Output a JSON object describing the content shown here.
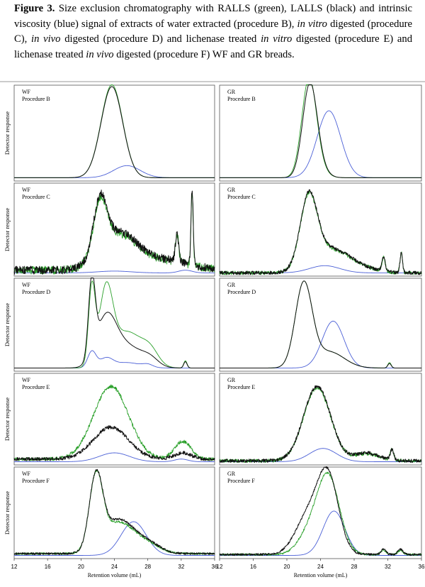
{
  "caption": {
    "label": "Figure 3.",
    "parts": [
      {
        "t": " Size exclusion chromatography with RALLS (green), LALLS (black) and intrinsic viscosity (blue) signal of extracts of water extracted (procedure B), ",
        "i": false
      },
      {
        "t": "in vitro",
        "i": true
      },
      {
        "t": " digested (procedure C), ",
        "i": false
      },
      {
        "t": "in vivo",
        "i": true
      },
      {
        "t": " digested (procedure D) and lichenase treated ",
        "i": false
      },
      {
        "t": "in vitro",
        "i": true
      },
      {
        "t": " digested (procedure E) and lichenase treated ",
        "i": false
      },
      {
        "t": "in vivo",
        "i": true
      },
      {
        "t": " digested (procedure F) WF and GR breads.",
        "i": false
      }
    ]
  },
  "colors": {
    "green": "#2aa02a",
    "black": "#111111",
    "blue": "#4a5fd6"
  },
  "chart_data": {
    "type": "line",
    "y_axis_label": "Detector response",
    "x_axis_label": "Retention volume (mL)",
    "x_ticks": [
      12,
      16,
      20,
      24,
      28,
      32,
      36
    ],
    "xlim": [
      12,
      36
    ],
    "panels": [
      {
        "id": "wf-b",
        "col": 0,
        "row": 0,
        "line1": "WF",
        "line2": "Procedure B",
        "noise": 0,
        "green": {
          "base": 0.02,
          "peaks": [
            [
              23.7,
              1.3,
              1.0
            ]
          ]
        },
        "black": {
          "base": 0.02,
          "peaks": [
            [
              23.7,
              1.3,
              0.98
            ]
          ]
        },
        "blue": {
          "base": 0.02,
          "peaks": [
            [
              25.5,
              1.6,
              0.13
            ]
          ]
        }
      },
      {
        "id": "gr-b",
        "col": 1,
        "row": 0,
        "line1": "GR",
        "line2": "Procedure B",
        "noise": 0,
        "green": {
          "base": 0.02,
          "peaks": [
            [
              22.6,
              0.85,
              0.97
            ],
            [
              23.4,
              1.0,
              0.15
            ]
          ]
        },
        "black": {
          "base": 0.02,
          "peaks": [
            [
              22.7,
              0.85,
              0.92
            ],
            [
              23.5,
              1.0,
              0.14
            ]
          ]
        },
        "blue": {
          "base": 0.02,
          "peaks": [
            [
              25.0,
              1.4,
              0.72
            ]
          ]
        }
      },
      {
        "id": "wf-c",
        "col": 0,
        "row": 1,
        "line1": "WF",
        "line2": "Procedure C",
        "noise": 0.045,
        "green": {
          "base": 0.05,
          "peaks": [
            [
              22.3,
              0.8,
              0.58
            ],
            [
              24.5,
              2.2,
              0.38
            ],
            [
              30.0,
              3.0,
              0.1
            ],
            [
              31.5,
              0.2,
              0.3
            ],
            [
              33.3,
              0.13,
              0.8
            ]
          ]
        },
        "black": {
          "base": 0.05,
          "peaks": [
            [
              22.3,
              0.8,
              0.6
            ],
            [
              24.5,
              2.2,
              0.4
            ],
            [
              30.0,
              3.0,
              0.11
            ],
            [
              31.5,
              0.2,
              0.3
            ],
            [
              33.3,
              0.13,
              0.85
            ]
          ]
        },
        "blue": {
          "base": 0.02,
          "peaks": [
            [
              24.0,
              2.0,
              0.02
            ],
            [
              32.5,
              0.8,
              0.03
            ]
          ]
        }
      },
      {
        "id": "gr-c",
        "col": 1,
        "row": 1,
        "line1": "GR",
        "line2": "Procedure C",
        "noise": 0.02,
        "green": {
          "base": 0.02,
          "peaks": [
            [
              22.6,
              1.0,
              0.75
            ],
            [
              25.0,
              2.2,
              0.25
            ],
            [
              28.5,
              2.0,
              0.05
            ],
            [
              31.5,
              0.2,
              0.15
            ],
            [
              33.6,
              0.15,
              0.22
            ]
          ]
        },
        "black": {
          "base": 0.02,
          "peaks": [
            [
              22.6,
              1.0,
              0.76
            ],
            [
              25.0,
              2.2,
              0.26
            ],
            [
              28.5,
              2.0,
              0.05
            ],
            [
              31.5,
              0.2,
              0.15
            ],
            [
              33.6,
              0.15,
              0.22
            ]
          ]
        },
        "blue": {
          "base": 0.02,
          "peaks": [
            [
              24.5,
              1.8,
              0.08
            ]
          ]
        }
      },
      {
        "id": "wf-d",
        "col": 0,
        "row": 2,
        "line1": "WF",
        "line2": "Procedure D",
        "noise": 0,
        "green": {
          "base": 0.02,
          "peaks": [
            [
              21.3,
              0.4,
              0.85
            ],
            [
              23.0,
              0.8,
              0.8
            ],
            [
              25.5,
              1.8,
              0.4
            ],
            [
              28.3,
              1.0,
              0.15
            ],
            [
              32.5,
              0.2,
              0.08
            ]
          ]
        },
        "black": {
          "base": 0.02,
          "peaks": [
            [
              21.3,
              0.4,
              0.85
            ],
            [
              23.0,
              1.2,
              0.52
            ],
            [
              25.5,
              1.8,
              0.24
            ],
            [
              28.3,
              1.0,
              0.08
            ],
            [
              32.5,
              0.2,
              0.07
            ]
          ]
        },
        "blue": {
          "base": 0.02,
          "peaks": [
            [
              21.3,
              0.5,
              0.18
            ],
            [
              23.0,
              0.8,
              0.1
            ],
            [
              25.5,
              1.6,
              0.06
            ],
            [
              28.0,
              0.6,
              0.03
            ]
          ]
        }
      },
      {
        "id": "gr-d",
        "col": 1,
        "row": 2,
        "line1": "GR",
        "line2": "Procedure D",
        "noise": 0,
        "green": {
          "base": 0.02,
          "peaks": [
            [
              22.0,
              1.0,
              0.92
            ],
            [
              25.0,
              1.8,
              0.18
            ],
            [
              32.2,
              0.2,
              0.06
            ]
          ]
        },
        "black": {
          "base": 0.02,
          "peaks": [
            [
              22.0,
              1.0,
              0.92
            ],
            [
              25.0,
              1.8,
              0.18
            ],
            [
              32.2,
              0.2,
              0.05
            ]
          ]
        },
        "blue": {
          "base": 0.02,
          "peaks": [
            [
              25.5,
              1.3,
              0.52
            ]
          ]
        }
      },
      {
        "id": "wf-e",
        "col": 0,
        "row": 3,
        "line1": "WF",
        "line2": "Procedure E",
        "noise": 0.02,
        "green": {
          "base": 0.05,
          "peaks": [
            [
              23.6,
              2.1,
              0.82
            ],
            [
              32.2,
              1.0,
              0.2
            ]
          ]
        },
        "black": {
          "base": 0.05,
          "peaks": [
            [
              23.6,
              2.1,
              0.36
            ],
            [
              32.2,
              1.0,
              0.07
            ]
          ]
        },
        "blue": {
          "base": 0.02,
          "peaks": [
            [
              24.0,
              1.8,
              0.1
            ],
            [
              32.0,
              0.8,
              0.03
            ]
          ]
        }
      },
      {
        "id": "gr-e",
        "col": 1,
        "row": 3,
        "line1": "GR",
        "line2": "Procedure E",
        "noise": 0.02,
        "green": {
          "base": 0.03,
          "peaks": [
            [
              23.6,
              1.6,
              0.82
            ],
            [
              29.5,
              1.5,
              0.08
            ],
            [
              32.5,
              0.2,
              0.12
            ]
          ]
        },
        "black": {
          "base": 0.03,
          "peaks": [
            [
              23.6,
              1.6,
              0.84
            ],
            [
              29.5,
              1.5,
              0.09
            ],
            [
              32.5,
              0.2,
              0.12
            ]
          ]
        },
        "blue": {
          "base": 0.02,
          "peaks": [
            [
              24.3,
              1.6,
              0.15
            ]
          ]
        }
      },
      {
        "id": "wf-f",
        "col": 0,
        "row": 4,
        "line1": "WF",
        "line2": "Procedure F",
        "noise": 0.012,
        "green": {
          "base": 0.04,
          "peaks": [
            [
              21.8,
              0.8,
              0.82
            ],
            [
              24.5,
              1.8,
              0.35
            ],
            [
              28.0,
              1.5,
              0.1
            ]
          ]
        },
        "black": {
          "base": 0.04,
          "peaks": [
            [
              21.8,
              0.8,
              0.82
            ],
            [
              24.5,
              1.8,
              0.38
            ],
            [
              28.0,
              1.5,
              0.11
            ]
          ]
        },
        "blue": {
          "base": 0.02,
          "peaks": [
            [
              26.3,
              1.5,
              0.38
            ]
          ]
        }
      },
      {
        "id": "gr-f",
        "col": 1,
        "row": 4,
        "line1": "GR",
        "line2": "Procedure F",
        "noise": 0.012,
        "green": {
          "base": 0.03,
          "peaks": [
            [
              24.9,
              1.35,
              0.88
            ],
            [
              22.5,
              1.3,
              0.2
            ],
            [
              31.5,
              0.3,
              0.05
            ],
            [
              33.5,
              0.3,
              0.05
            ]
          ]
        },
        "black": {
          "base": 0.03,
          "peaks": [
            [
              24.9,
              1.25,
              0.85
            ],
            [
              22.5,
              1.5,
              0.42
            ],
            [
              31.5,
              0.3,
              0.06
            ],
            [
              33.5,
              0.3,
              0.06
            ]
          ]
        },
        "blue": {
          "base": 0.02,
          "peaks": [
            [
              25.6,
              1.3,
              0.5
            ]
          ]
        }
      }
    ]
  }
}
